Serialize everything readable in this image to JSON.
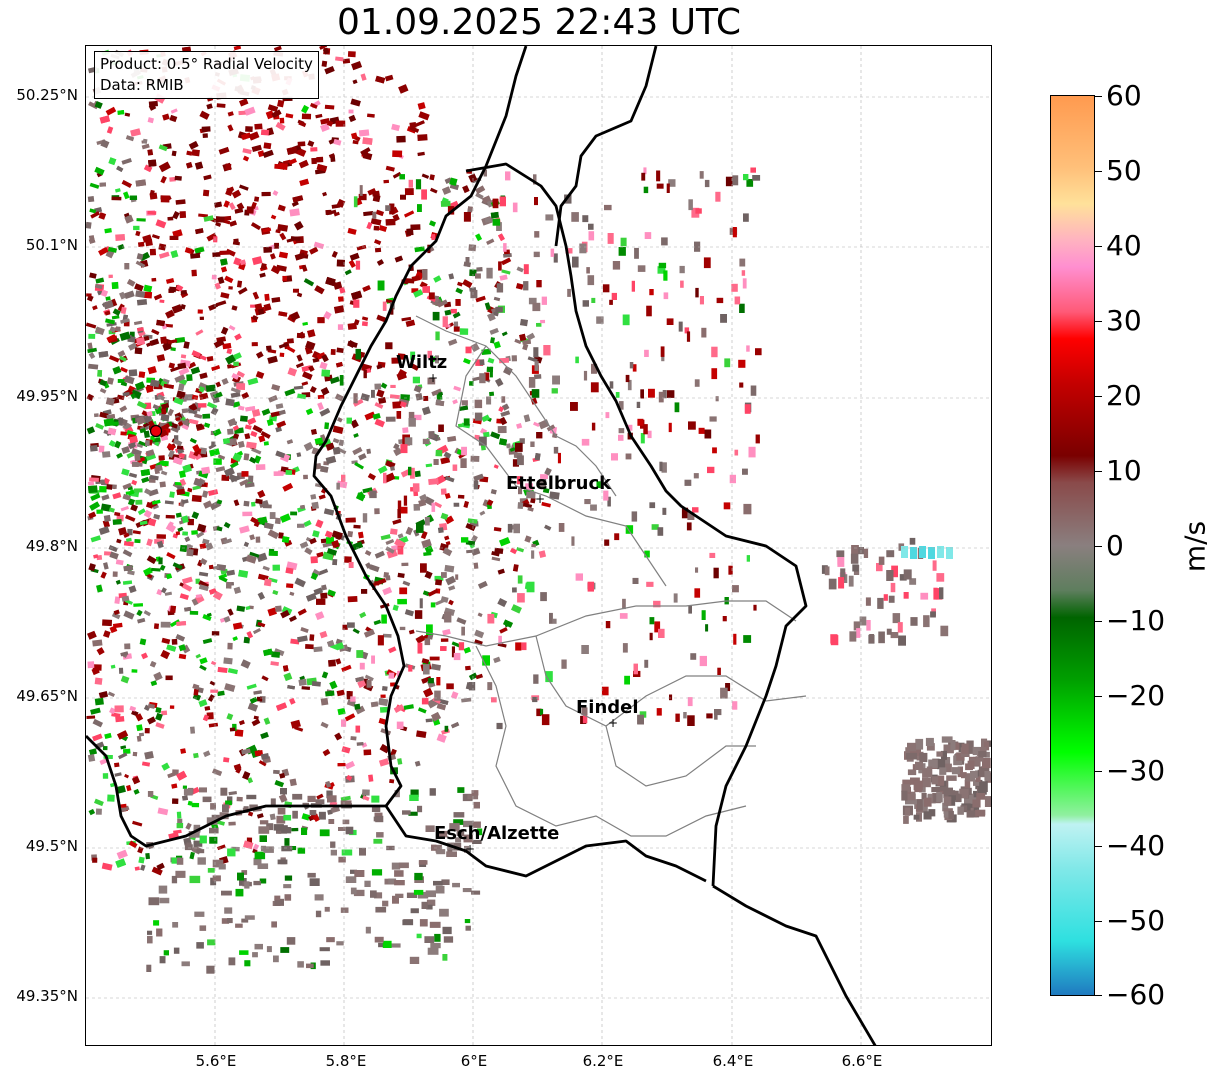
{
  "title": "01.09.2025 22:43 UTC",
  "info": {
    "product": "Product: 0.5° Radial Velocity",
    "data": "Data: RMIB"
  },
  "axes": {
    "lon_ticks": [
      "5.6°E",
      "5.8°E",
      "6°E",
      "6.2°E",
      "6.4°E",
      "6.6°E"
    ],
    "lat_ticks": [
      "50.25°N",
      "50.1°N",
      "49.95°N",
      "49.8°N",
      "49.65°N",
      "49.5°N",
      "49.35°N"
    ]
  },
  "cities": [
    {
      "name": "Wiltz"
    },
    {
      "name": "Ettelbruck"
    },
    {
      "name": "Findel"
    },
    {
      "name": "Esch/Alzette"
    }
  ],
  "radar_site": {
    "color": "#e8000b"
  },
  "colorbar": {
    "label": "m/s",
    "ticks": [
      "60",
      "50",
      "40",
      "30",
      "20",
      "10",
      "0",
      "−10",
      "−20",
      "−30",
      "−40",
      "−50",
      "−60"
    ],
    "colors": {
      "top": "#ff9a4f",
      "mid_top": "#ffc07a",
      "pink": "#ff8fd0",
      "red": "#ff0000",
      "dark_red": "#7a0000",
      "zero": "#8a7f7f",
      "dark_green": "#006400",
      "green": "#00ff00",
      "cyan": "#2ee0e0",
      "blue": "#1f7ac0"
    }
  }
}
